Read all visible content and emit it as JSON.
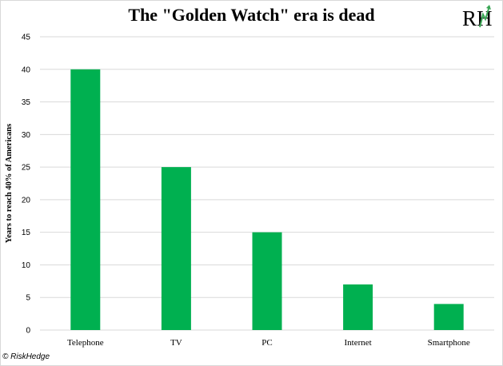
{
  "header": {
    "title": "The \"Golden Watch\" era is dead",
    "logo_text": "RH"
  },
  "footer": {
    "credit": "© RiskHedge"
  },
  "colors": {
    "bar": "#00b050",
    "grid": "#d9d9d9",
    "logo_green": "#3aa655"
  },
  "chart_data": {
    "type": "bar",
    "categories": [
      "Telephone",
      "TV",
      "PC",
      "Internet",
      "Smartphone"
    ],
    "values": [
      40,
      25,
      15,
      7,
      4
    ],
    "title": "The \"Golden Watch\" era is dead",
    "xlabel": "",
    "ylabel": "Years to reach 40% of Americans",
    "ylim": [
      0,
      45
    ],
    "yticks": [
      0,
      5,
      10,
      15,
      20,
      25,
      30,
      35,
      40,
      45
    ],
    "grid": true,
    "legend": "none"
  }
}
